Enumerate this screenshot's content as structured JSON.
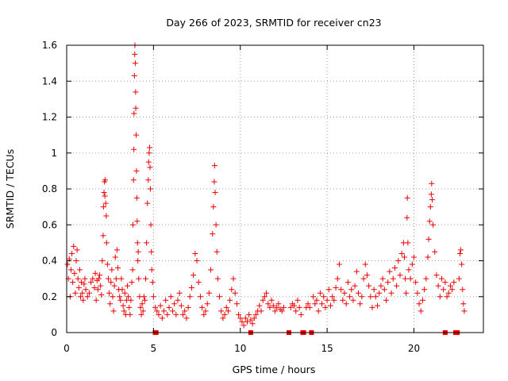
{
  "chart_data": {
    "type": "scatter",
    "title": "Day 266 of 2023, SRMTID for receiver cn23",
    "xlabel": "GPS time / hours",
    "ylabel": "SRMTID / TECUs",
    "xlim": [
      0,
      24
    ],
    "ylim": [
      0,
      1.6
    ],
    "xticks": [
      0,
      5,
      10,
      15,
      20
    ],
    "xtick_labels": [
      "0",
      "5",
      "10",
      "15",
      "20"
    ],
    "yticks": [
      0,
      0.2,
      0.4,
      0.6,
      0.8,
      1,
      1.2,
      1.4,
      1.6
    ],
    "ytick_labels": [
      "0",
      "0.2",
      "0.4",
      "0.6",
      "0.8",
      "1",
      "1.2",
      "1.4",
      "1.6"
    ],
    "grid": true,
    "marker": "+",
    "color": "#ee0000",
    "series": [
      {
        "name": "SRMTID",
        "points": [
          [
            0.05,
            0.38
          ],
          [
            0.1,
            0.3
          ],
          [
            0.15,
            0.41
          ],
          [
            0.2,
            0.2
          ],
          [
            0.25,
            0.35
          ],
          [
            0.3,
            0.44
          ],
          [
            0.35,
            0.28
          ],
          [
            0.4,
            0.48
          ],
          [
            0.45,
            0.33
          ],
          [
            0.5,
            0.22
          ],
          [
            0.55,
            0.4
          ],
          [
            0.6,
            0.46
          ],
          [
            0.65,
            0.3
          ],
          [
            0.7,
            0.25
          ],
          [
            0.75,
            0.35
          ],
          [
            0.8,
            0.2
          ],
          [
            0.85,
            0.28
          ],
          [
            0.9,
            0.22
          ],
          [
            0.95,
            0.18
          ],
          [
            1.0,
            0.27
          ],
          [
            1.05,
            0.3
          ],
          [
            1.1,
            0.24
          ],
          [
            1.2,
            0.2
          ],
          [
            1.3,
            0.22
          ],
          [
            1.4,
            0.28
          ],
          [
            1.5,
            0.3
          ],
          [
            1.6,
            0.25
          ],
          [
            1.65,
            0.33
          ],
          [
            1.7,
            0.18
          ],
          [
            1.75,
            0.29
          ],
          [
            1.8,
            0.24
          ],
          [
            1.85,
            0.3
          ],
          [
            1.9,
            0.32
          ],
          [
            1.95,
            0.26
          ],
          [
            2.0,
            0.21
          ],
          [
            2.05,
            0.4
          ],
          [
            2.1,
            0.54
          ],
          [
            2.12,
            0.7
          ],
          [
            2.15,
            0.78
          ],
          [
            2.18,
            0.84
          ],
          [
            2.2,
            0.76
          ],
          [
            2.22,
            0.85
          ],
          [
            2.25,
            0.72
          ],
          [
            2.28,
            0.65
          ],
          [
            2.3,
            0.5
          ],
          [
            2.35,
            0.38
          ],
          [
            2.4,
            0.3
          ],
          [
            2.45,
            0.22
          ],
          [
            2.5,
            0.16
          ],
          [
            2.55,
            0.28
          ],
          [
            2.6,
            0.35
          ],
          [
            2.65,
            0.2
          ],
          [
            2.7,
            0.12
          ],
          [
            2.75,
            0.26
          ],
          [
            2.8,
            0.42
          ],
          [
            2.85,
            0.3
          ],
          [
            2.9,
            0.46
          ],
          [
            2.95,
            0.36
          ],
          [
            3.0,
            0.24
          ],
          [
            3.05,
            0.2
          ],
          [
            3.1,
            0.18
          ],
          [
            3.15,
            0.3
          ],
          [
            3.2,
            0.24
          ],
          [
            3.25,
            0.15
          ],
          [
            3.3,
            0.12
          ],
          [
            3.35,
            0.22
          ],
          [
            3.4,
            0.1
          ],
          [
            3.45,
            0.18
          ],
          [
            3.5,
            0.26
          ],
          [
            3.55,
            0.2
          ],
          [
            3.6,
            0.14
          ],
          [
            3.65,
            0.1
          ],
          [
            3.7,
            0.18
          ],
          [
            3.75,
            0.28
          ],
          [
            3.8,
            0.35
          ],
          [
            3.82,
            0.6
          ],
          [
            3.85,
            0.85
          ],
          [
            3.87,
            1.02
          ],
          [
            3.88,
            1.22
          ],
          [
            3.9,
            1.43
          ],
          [
            3.92,
            1.55
          ],
          [
            3.93,
            1.6
          ],
          [
            3.95,
            1.5
          ],
          [
            3.97,
            1.34
          ],
          [
            3.98,
            1.25
          ],
          [
            4.0,
            1.1
          ],
          [
            4.02,
            0.9
          ],
          [
            4.04,
            0.75
          ],
          [
            4.06,
            0.62
          ],
          [
            4.08,
            0.5
          ],
          [
            4.1,
            0.4
          ],
          [
            4.12,
            0.45
          ],
          [
            4.15,
            0.3
          ],
          [
            4.2,
            0.2
          ],
          [
            4.25,
            0.14
          ],
          [
            4.3,
            0.1
          ],
          [
            4.35,
            0.16
          ],
          [
            4.4,
            0.12
          ],
          [
            4.45,
            0.2
          ],
          [
            4.5,
            0.18
          ],
          [
            4.55,
            0.3
          ],
          [
            4.6,
            0.5
          ],
          [
            4.65,
            0.72
          ],
          [
            4.7,
            0.85
          ],
          [
            4.72,
            0.95
          ],
          [
            4.75,
            1.0
          ],
          [
            4.78,
            1.03
          ],
          [
            4.8,
            0.92
          ],
          [
            4.82,
            0.8
          ],
          [
            4.85,
            0.6
          ],
          [
            4.88,
            0.45
          ],
          [
            4.9,
            0.35
          ],
          [
            4.95,
            0.28
          ],
          [
            5.0,
            0.2
          ],
          [
            5.1,
            0.14
          ],
          [
            5.2,
            0.12
          ],
          [
            5.3,
            0.1
          ],
          [
            5.4,
            0.15
          ],
          [
            5.5,
            0.08
          ],
          [
            5.6,
            0.12
          ],
          [
            5.7,
            0.18
          ],
          [
            5.8,
            0.1
          ],
          [
            5.9,
            0.14
          ],
          [
            6.0,
            0.2
          ],
          [
            6.1,
            0.12
          ],
          [
            6.2,
            0.16
          ],
          [
            6.3,
            0.1
          ],
          [
            6.4,
            0.18
          ],
          [
            6.5,
            0.22
          ],
          [
            6.6,
            0.15
          ],
          [
            6.7,
            0.1
          ],
          [
            6.8,
            0.12
          ],
          [
            6.9,
            0.08
          ],
          [
            7.0,
            0.14
          ],
          [
            7.1,
            0.2
          ],
          [
            7.2,
            0.25
          ],
          [
            7.3,
            0.32
          ],
          [
            7.4,
            0.44
          ],
          [
            7.5,
            0.4
          ],
          [
            7.6,
            0.28
          ],
          [
            7.7,
            0.2
          ],
          [
            7.8,
            0.14
          ],
          [
            7.9,
            0.1
          ],
          [
            8.0,
            0.12
          ],
          [
            8.1,
            0.16
          ],
          [
            8.2,
            0.22
          ],
          [
            8.3,
            0.35
          ],
          [
            8.4,
            0.55
          ],
          [
            8.45,
            0.7
          ],
          [
            8.5,
            0.84
          ],
          [
            8.52,
            0.93
          ],
          [
            8.55,
            0.78
          ],
          [
            8.6,
            0.6
          ],
          [
            8.65,
            0.45
          ],
          [
            8.7,
            0.3
          ],
          [
            8.8,
            0.2
          ],
          [
            8.9,
            0.12
          ],
          [
            9.0,
            0.08
          ],
          [
            9.1,
            0.1
          ],
          [
            9.2,
            0.14
          ],
          [
            9.3,
            0.12
          ],
          [
            9.4,
            0.18
          ],
          [
            9.5,
            0.24
          ],
          [
            9.6,
            0.3
          ],
          [
            9.7,
            0.22
          ],
          [
            9.8,
            0.16
          ],
          [
            9.9,
            0.1
          ],
          [
            10.0,
            0.08
          ],
          [
            10.1,
            0.06
          ],
          [
            10.2,
            0.04
          ],
          [
            10.3,
            0.08
          ],
          [
            10.4,
            0.06
          ],
          [
            10.5,
            0.1
          ],
          [
            10.6,
            0.07
          ],
          [
            10.7,
            0.05
          ],
          [
            10.8,
            0.08
          ],
          [
            10.9,
            0.1
          ],
          [
            11.0,
            0.12
          ],
          [
            11.1,
            0.15
          ],
          [
            11.2,
            0.12
          ],
          [
            11.3,
            0.18
          ],
          [
            11.4,
            0.2
          ],
          [
            11.5,
            0.22
          ],
          [
            11.6,
            0.16
          ],
          [
            11.7,
            0.14
          ],
          [
            11.8,
            0.18
          ],
          [
            11.9,
            0.15
          ],
          [
            12.0,
            0.12
          ],
          [
            12.1,
            0.14
          ],
          [
            12.2,
            0.16
          ],
          [
            12.3,
            0.13
          ],
          [
            12.4,
            0.12
          ],
          [
            12.5,
            0.14
          ],
          [
            12.9,
            0.14
          ],
          [
            13.0,
            0.16
          ],
          [
            13.1,
            0.15
          ],
          [
            13.2,
            0.12
          ],
          [
            13.3,
            0.18
          ],
          [
            13.4,
            0.14
          ],
          [
            13.5,
            0.1
          ],
          [
            13.8,
            0.14
          ],
          [
            13.9,
            0.16
          ],
          [
            14.0,
            0.14
          ],
          [
            14.2,
            0.2
          ],
          [
            14.3,
            0.16
          ],
          [
            14.4,
            0.18
          ],
          [
            14.5,
            0.12
          ],
          [
            14.6,
            0.22
          ],
          [
            14.7,
            0.16
          ],
          [
            14.8,
            0.2
          ],
          [
            14.9,
            0.14
          ],
          [
            15.0,
            0.18
          ],
          [
            15.1,
            0.24
          ],
          [
            15.2,
            0.15
          ],
          [
            15.3,
            0.2
          ],
          [
            15.4,
            0.18
          ],
          [
            15.5,
            0.25
          ],
          [
            15.6,
            0.3
          ],
          [
            15.7,
            0.38
          ],
          [
            15.8,
            0.24
          ],
          [
            15.9,
            0.18
          ],
          [
            16.0,
            0.22
          ],
          [
            16.1,
            0.16
          ],
          [
            16.2,
            0.28
          ],
          [
            16.3,
            0.2
          ],
          [
            16.4,
            0.24
          ],
          [
            16.5,
            0.18
          ],
          [
            16.6,
            0.26
          ],
          [
            16.7,
            0.34
          ],
          [
            16.8,
            0.22
          ],
          [
            16.9,
            0.16
          ],
          [
            17.0,
            0.2
          ],
          [
            17.1,
            0.3
          ],
          [
            17.2,
            0.38
          ],
          [
            17.3,
            0.32
          ],
          [
            17.4,
            0.26
          ],
          [
            17.5,
            0.2
          ],
          [
            17.6,
            0.14
          ],
          [
            17.7,
            0.24
          ],
          [
            17.8,
            0.2
          ],
          [
            17.9,
            0.15
          ],
          [
            18.0,
            0.22
          ],
          [
            18.1,
            0.26
          ],
          [
            18.2,
            0.3
          ],
          [
            18.3,
            0.24
          ],
          [
            18.4,
            0.18
          ],
          [
            18.5,
            0.28
          ],
          [
            18.6,
            0.34
          ],
          [
            18.7,
            0.22
          ],
          [
            18.8,
            0.3
          ],
          [
            18.9,
            0.36
          ],
          [
            19.0,
            0.26
          ],
          [
            19.1,
            0.4
          ],
          [
            19.2,
            0.32
          ],
          [
            19.3,
            0.44
          ],
          [
            19.4,
            0.5
          ],
          [
            19.45,
            0.42
          ],
          [
            19.5,
            0.3
          ],
          [
            19.55,
            0.22
          ],
          [
            19.6,
            0.64
          ],
          [
            19.62,
            0.75
          ],
          [
            19.65,
            0.5
          ],
          [
            19.7,
            0.35
          ],
          [
            19.8,
            0.3
          ],
          [
            19.9,
            0.38
          ],
          [
            20.0,
            0.42
          ],
          [
            20.1,
            0.28
          ],
          [
            20.2,
            0.22
          ],
          [
            20.3,
            0.16
          ],
          [
            20.4,
            0.12
          ],
          [
            20.5,
            0.18
          ],
          [
            20.6,
            0.24
          ],
          [
            20.7,
            0.3
          ],
          [
            20.8,
            0.42
          ],
          [
            20.85,
            0.52
          ],
          [
            20.9,
            0.62
          ],
          [
            20.95,
            0.7
          ],
          [
            21.0,
            0.77
          ],
          [
            21.02,
            0.83
          ],
          [
            21.05,
            0.74
          ],
          [
            21.1,
            0.6
          ],
          [
            21.2,
            0.45
          ],
          [
            21.3,
            0.32
          ],
          [
            21.4,
            0.26
          ],
          [
            21.5,
            0.2
          ],
          [
            21.6,
            0.3
          ],
          [
            21.7,
            0.24
          ],
          [
            21.8,
            0.28
          ],
          [
            21.9,
            0.2
          ],
          [
            22.0,
            0.22
          ],
          [
            22.1,
            0.26
          ],
          [
            22.2,
            0.24
          ],
          [
            22.3,
            0.28
          ],
          [
            22.6,
            0.3
          ],
          [
            22.65,
            0.44
          ],
          [
            22.7,
            0.46
          ],
          [
            22.75,
            0.38
          ],
          [
            22.8,
            0.24
          ],
          [
            22.85,
            0.16
          ],
          [
            22.9,
            0.12
          ]
        ]
      }
    ],
    "gap_markers_x": [
      5.1,
      5.15,
      10.6,
      12.8,
      13.6,
      13.65,
      14.1,
      21.8,
      22.4,
      22.5
    ]
  }
}
